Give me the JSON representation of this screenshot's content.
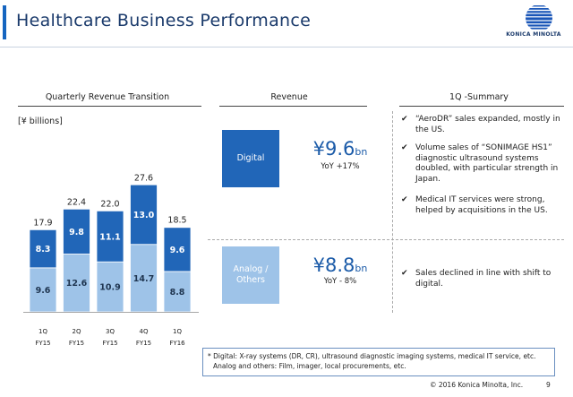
{
  "header": {
    "title": "Healthcare Business Performance",
    "logo_text": "KONICA MINOLTA"
  },
  "left_section": {
    "heading": "Quarterly Revenue Transition",
    "unit": "[¥ billions]"
  },
  "revenue_section": {
    "heading": "Revenue",
    "digital": {
      "label": "Digital",
      "value": "¥9.6",
      "value_unit": "bn",
      "yoy": "YoY +17%"
    },
    "analog": {
      "label": "Analog / Others",
      "value": "¥8.8",
      "value_unit": "bn",
      "yoy": "YoY  - 8%"
    }
  },
  "summary_section": {
    "heading": "1Q -Summary",
    "check_icon": "✔",
    "digital_bullets": [
      "“AeroDR” sales expanded, mostly in the US.",
      "Volume sales of “SONIMAGE HS1” diagnostic ultrasound systems doubled, with particular strength in Japan.",
      "Medical IT services were strong, helped by acquisitions in the US."
    ],
    "analog_bullets": [
      "Sales declined in line with shift to digital."
    ]
  },
  "footnote": {
    "line1": "* Digital: X-ray systems (DR, CR), ultrasound diagnostic imaging systems, medical IT service, etc.",
    "line2": "Analog and others: Film, imager, local procurements, etc."
  },
  "footer": {
    "copyright": "© 2016 Konica Minolta, Inc.",
    "page_number": "9"
  },
  "colors": {
    "digital": "#2166b8",
    "analog": "#9ec3e8",
    "accent": "#1565c0"
  },
  "chart_data": {
    "type": "bar",
    "stacked": true,
    "categories": [
      "1Q FY15",
      "2Q FY15",
      "3Q FY15",
      "4Q FY15",
      "1Q FY16"
    ],
    "category_lines": [
      [
        "1Q",
        "FY15"
      ],
      [
        "2Q",
        "FY15"
      ],
      [
        "3Q",
        "FY15"
      ],
      [
        "4Q",
        "FY15"
      ],
      [
        "1Q",
        "FY16"
      ]
    ],
    "series": [
      {
        "values": [
          9.6,
          12.6,
          10.9,
          14.7,
          8.8
        ],
        "color": "#9ec3e8"
      },
      {
        "values": [
          8.3,
          9.8,
          11.1,
          13.0,
          9.6
        ],
        "color": "#2166b8"
      }
    ],
    "totals": [
      17.9,
      22.4,
      22.0,
      27.6,
      18.5
    ],
    "ylabel": "[¥ billions]",
    "ylim": [
      0,
      30
    ],
    "grid": false,
    "legend": "none"
  }
}
